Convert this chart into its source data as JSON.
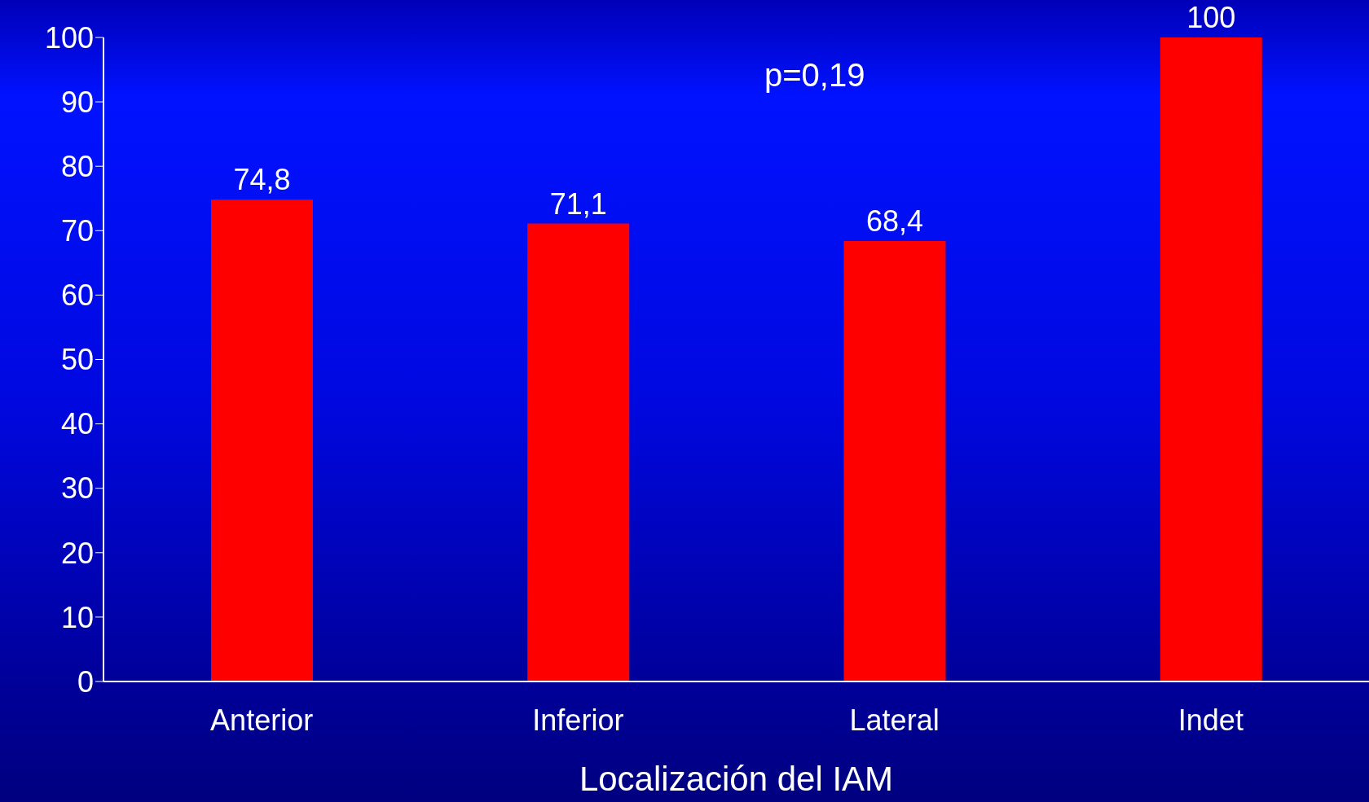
{
  "chart_data": {
    "type": "bar",
    "xlabel": "Localización del IAM",
    "categories": [
      "Anterior",
      "Inferior",
      "Lateral",
      "Indet"
    ],
    "values": [
      74.8,
      71.1,
      68.4,
      100
    ],
    "value_labels": [
      "74,8",
      "71,1",
      "68,4",
      "100"
    ],
    "color": "#ff0000",
    "ylim": [
      0,
      100
    ],
    "yticks": [
      0,
      10,
      20,
      30,
      40,
      50,
      60,
      70,
      80,
      90,
      100
    ],
    "grid": false,
    "annotations": [
      "p=0,19"
    ]
  }
}
